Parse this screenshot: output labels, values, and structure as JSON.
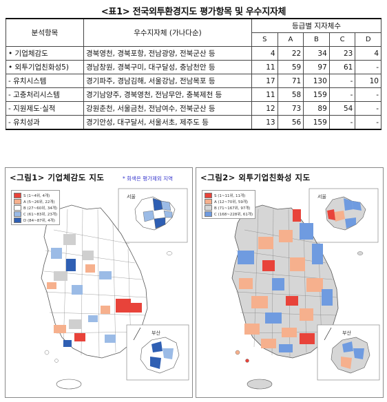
{
  "title": "<표1> 전국외투환경지도 평가항목 및 우수지자체",
  "table": {
    "header_item": "분석항목",
    "header_region": "우수지자체 (가나다순)",
    "header_counts": "등급별 지자체수",
    "grades": [
      "S",
      "A",
      "B",
      "C",
      "D"
    ],
    "rows": [
      {
        "item": "• 기업체감도",
        "regions": "경북영천, 경북포항, 전남광양, 전북군산 등",
        "counts": [
          "4",
          "22",
          "34",
          "23",
          "4"
        ]
      },
      {
        "item": "• 외투기업친화성5)",
        "regions": "경남창원, 경북구미, 대구달성, 충남천안 등",
        "counts": [
          "11",
          "59",
          "97",
          "61",
          "-"
        ]
      },
      {
        "item": " - 유치시스템",
        "regions": "경기파주, 경남김해, 서울강남, 전남목포 등",
        "counts": [
          "17",
          "71",
          "130",
          "-",
          "10"
        ]
      },
      {
        "item": " - 고충처리시스템",
        "regions": "경기남양주, 경북영천, 전남무안, 충북제천 등",
        "counts": [
          "11",
          "58",
          "159",
          "-",
          "-"
        ]
      },
      {
        "item": " - 지원제도·실적",
        "regions": "강원춘천, 서울금천, 전남여수, 전북군산 등",
        "counts": [
          "12",
          "73",
          "89",
          "54",
          "-"
        ]
      },
      {
        "item": " - 유치성과",
        "regions": "경기안성, 대구달서, 서울서초, 제주도 등",
        "counts": [
          "13",
          "56",
          "159",
          "-",
          "-"
        ]
      }
    ]
  },
  "map1": {
    "title": "<그림1> 기업체감도 지도",
    "note": "* 회색은 평가제외 지역",
    "legend": [
      "S (1~4위, 4개)",
      "A (5~26위, 22개)",
      "B (27~60위, 34개)",
      "C (61~83위, 23개)",
      "D (84~87위, 4개)"
    ],
    "legend_colors": [
      "#e8433a",
      "#f6b08d",
      "#ffffff",
      "#9bbbe6",
      "#2f5fb3"
    ],
    "inset_top": "서울",
    "inset_bottom": "부산"
  },
  "map2": {
    "title": "<그림2> 외투기업친화성 지도",
    "legend": [
      "S (1~11위, 11개)",
      "A (12~70위, 59개)",
      "B (71~167위, 97개)",
      "C (168~228위, 61개)"
    ],
    "legend_colors": [
      "#e8433a",
      "#f6b08d",
      "#d6d6d6",
      "#6f9be0"
    ],
    "inset_top": "서울",
    "inset_bottom": "부산"
  }
}
